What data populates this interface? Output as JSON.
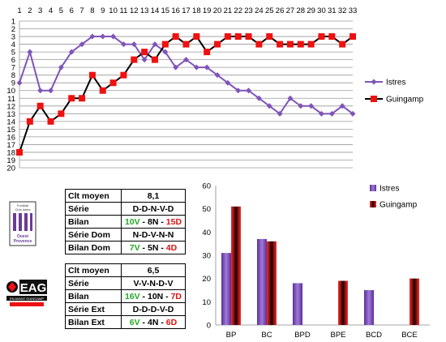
{
  "chart_data": [
    {
      "type": "line",
      "x": [
        1,
        2,
        3,
        4,
        5,
        6,
        7,
        8,
        9,
        10,
        11,
        12,
        13,
        14,
        15,
        16,
        17,
        18,
        19,
        20,
        21,
        22,
        23,
        24,
        25,
        26,
        27,
        28,
        29,
        30,
        31,
        32,
        33
      ],
      "ylim": [
        20,
        1
      ],
      "yticks": [
        1,
        2,
        3,
        4,
        5,
        6,
        7,
        8,
        9,
        10,
        11,
        12,
        13,
        14,
        15,
        16,
        17,
        18,
        19,
        20
      ],
      "series": [
        {
          "name": "Istres",
          "color": "#7f55b8",
          "values": [
            9,
            5,
            10,
            10,
            7,
            5,
            4,
            3,
            3,
            3,
            4,
            4,
            6,
            4,
            5,
            7,
            6,
            7,
            7,
            8,
            9,
            10,
            10,
            11,
            12,
            13,
            11,
            12,
            12,
            13,
            13,
            12,
            13
          ]
        },
        {
          "name": "Guingamp",
          "color": "#ee1111",
          "values": [
            18,
            14,
            12,
            14,
            13,
            11,
            11,
            8,
            10,
            9,
            8,
            6,
            5,
            6,
            4,
            3,
            4,
            3,
            5,
            4,
            3,
            3,
            3,
            4,
            3,
            4,
            4,
            4,
            4,
            3,
            3,
            4,
            3
          ]
        }
      ],
      "legend": "right"
    },
    {
      "type": "bar",
      "categories": [
        "BP",
        "BC",
        "BPD",
        "BPE",
        "BCD",
        "BCE"
      ],
      "ylim": [
        0,
        60
      ],
      "yticks": [
        0,
        10,
        20,
        30,
        40,
        50,
        60
      ],
      "series": [
        {
          "name": "Istres",
          "values": [
            31,
            37,
            18,
            null,
            15,
            null
          ]
        },
        {
          "name": "Guingamp",
          "values": [
            51,
            36,
            null,
            19,
            null,
            20
          ]
        }
      ],
      "legend": "top-right"
    }
  ],
  "logos": {
    "istres": {
      "line1": "Football",
      "line2": "Club istres",
      "line3": "Ouest",
      "line4": "Provence"
    },
    "guingamp": {
      "line1": "EAG",
      "line2": "EN AVANT GUINGAMP"
    }
  },
  "istres_table": {
    "clt_label": "Clt moyen",
    "clt_value": "8,1",
    "serie_label": "Série",
    "serie_value": "D-D-N-V-D",
    "bilan_label": "Bilan",
    "bilan_w": "10V",
    "bilan_d": "8N",
    "bilan_l": "15D",
    "sdom_label": "Série Dom",
    "sdom_value": "N-D-V-N-N",
    "bdom_label": "Bilan Dom",
    "bdom_w": "7V",
    "bdom_d": "5N",
    "bdom_l": "4D",
    "sep": " - "
  },
  "guingamp_table": {
    "clt_label": "Clt moyen",
    "clt_value": "6,5",
    "serie_label": "Série",
    "serie_value": "V-V-N-D-V",
    "bilan_label": "Bilan",
    "bilan_w": "16V",
    "bilan_d": "10N",
    "bilan_l": "7D",
    "sext_label": "Série Ext",
    "sext_value": "D-D-D-V-D",
    "bext_label": "Bilan Ext",
    "bext_w": "6V",
    "bext_d": "4N",
    "bext_l": "6D",
    "sep": " - "
  }
}
